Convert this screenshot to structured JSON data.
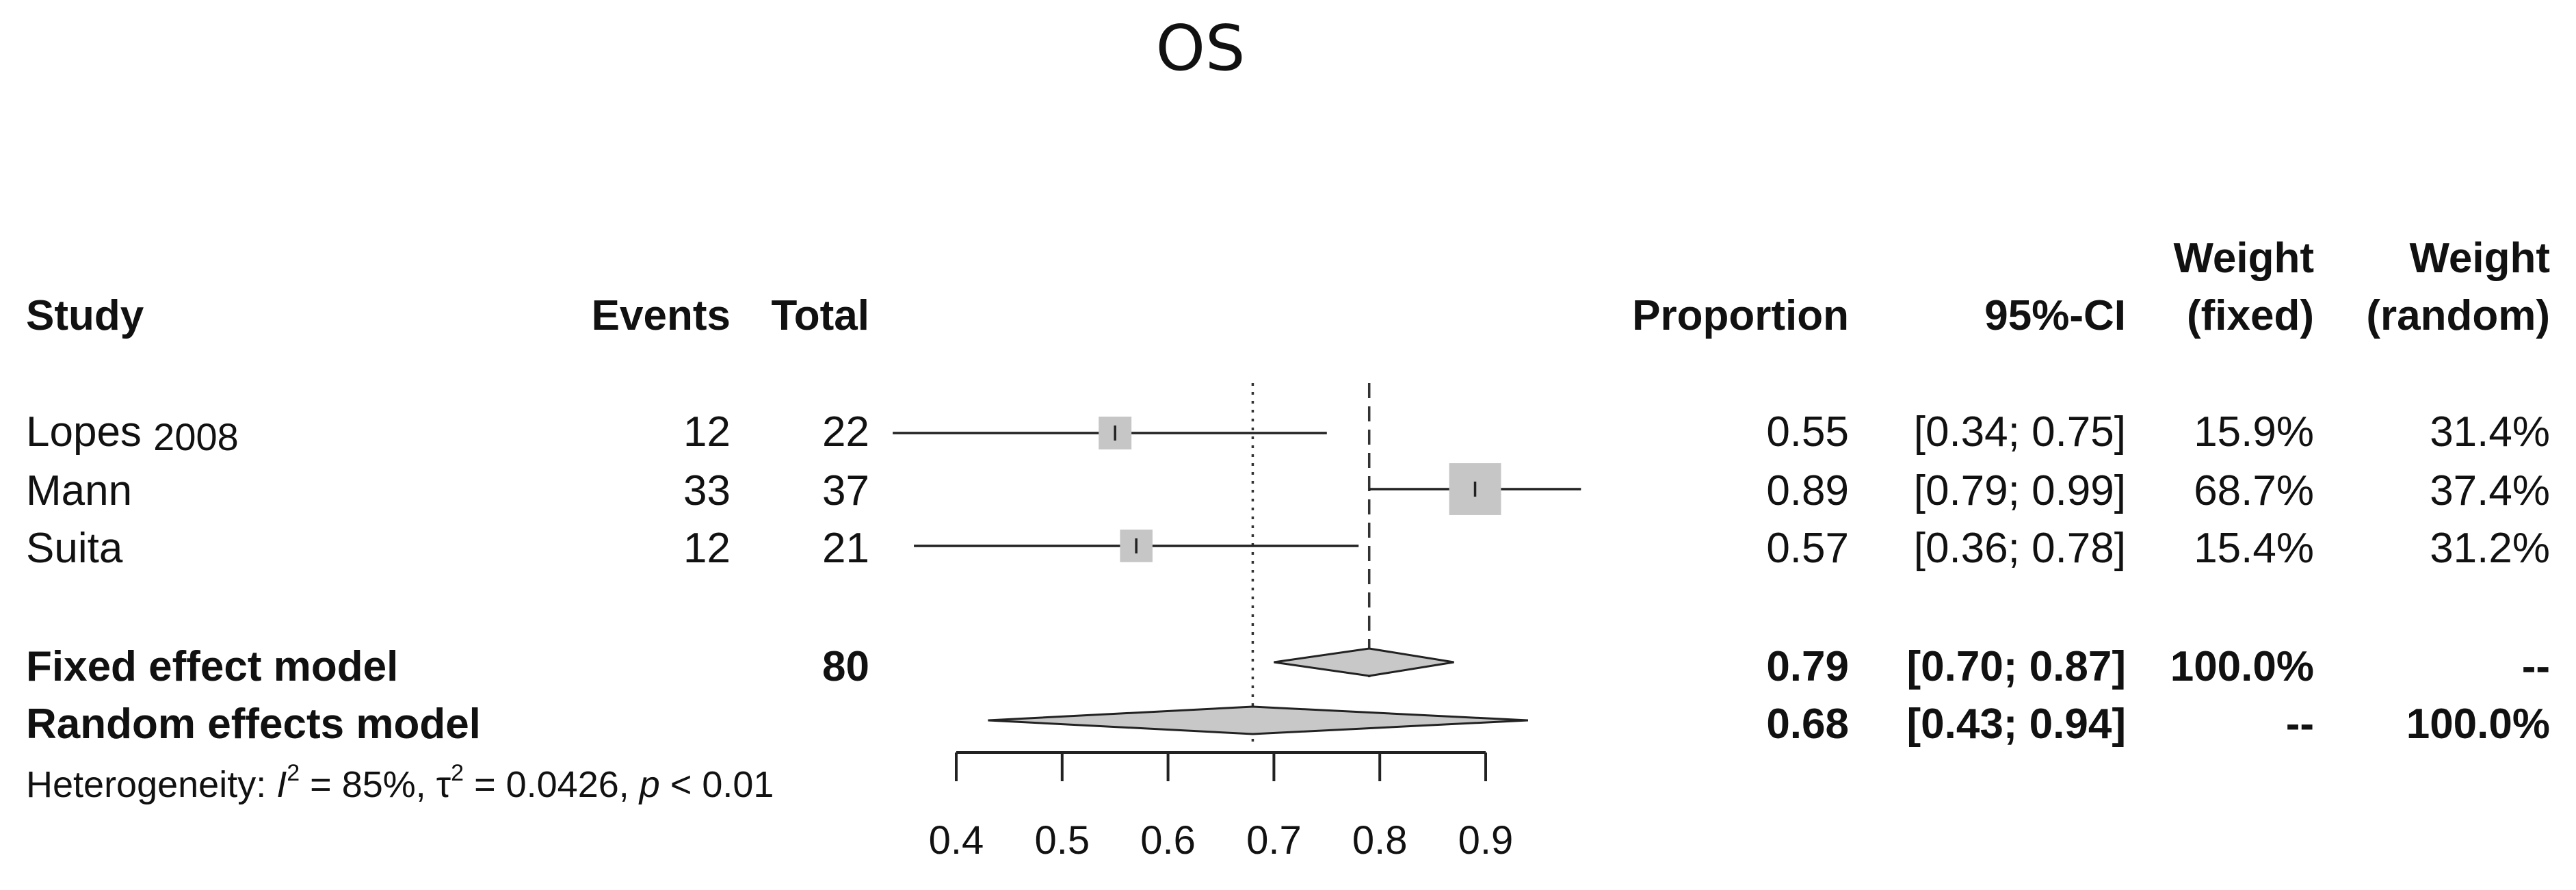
{
  "title": "OS",
  "headers": {
    "study": "Study",
    "events": "Events",
    "total": "Total",
    "proportion": "Proportion",
    "ci": "95%-CI",
    "weight_fixed_line1": "Weight",
    "weight_fixed_line2": "(fixed)",
    "weight_random_line1": "Weight",
    "weight_random_line2": "(random)"
  },
  "heterogeneity": {
    "prefix": "Heterogeneity: ",
    "i2_symbol": "I",
    "i2_sup": "2",
    "i2_value": " = 85%, ",
    "tau_symbol": "τ",
    "tau_sup": "2",
    "tau_value": " = 0.0426, ",
    "p_symbol": "p",
    "p_value": " < 0.01"
  },
  "chart_data": {
    "type": "forest",
    "title": "OS",
    "xlim": [
      0.4,
      0.9
    ],
    "x_ticks": [
      "0.4",
      "0.5",
      "0.6",
      "0.7",
      "0.8",
      "0.9"
    ],
    "reference_lines": {
      "fixed": 0.79,
      "random": 0.68
    },
    "studies": [
      {
        "name": "Lopes",
        "year": "2008",
        "events": "12",
        "total": "22",
        "proportion": 0.55,
        "proportion_text": "0.55",
        "lower": 0.34,
        "upper": 0.75,
        "ci_text": "[0.34; 0.75]",
        "weight_fixed": "15.9%",
        "weight_random": "31.4%"
      },
      {
        "name": "Mann",
        "year": "",
        "events": "33",
        "total": "37",
        "proportion": 0.89,
        "proportion_text": "0.89",
        "lower": 0.79,
        "upper": 0.99,
        "ci_text": "[0.79; 0.99]",
        "weight_fixed": "68.7%",
        "weight_random": "37.4%"
      },
      {
        "name": "Suita",
        "year": "",
        "events": "12",
        "total": "21",
        "proportion": 0.57,
        "proportion_text": "0.57",
        "lower": 0.36,
        "upper": 0.78,
        "ci_text": "[0.36; 0.78]",
        "weight_fixed": "15.4%",
        "weight_random": "31.2%"
      }
    ],
    "summary": [
      {
        "name": "Fixed effect model",
        "total": "80",
        "estimate": 0.79,
        "estimate_text": "0.79",
        "lower": 0.7,
        "upper": 0.87,
        "ci_text": "[0.70; 0.87]",
        "weight_fixed": "100.0%",
        "weight_random": "--"
      },
      {
        "name": "Random effects model",
        "total": "",
        "estimate": 0.68,
        "estimate_text": "0.68",
        "lower": 0.43,
        "upper": 0.94,
        "ci_text": "[0.43; 0.94]",
        "weight_fixed": "--",
        "weight_random": "100.0%"
      }
    ]
  }
}
